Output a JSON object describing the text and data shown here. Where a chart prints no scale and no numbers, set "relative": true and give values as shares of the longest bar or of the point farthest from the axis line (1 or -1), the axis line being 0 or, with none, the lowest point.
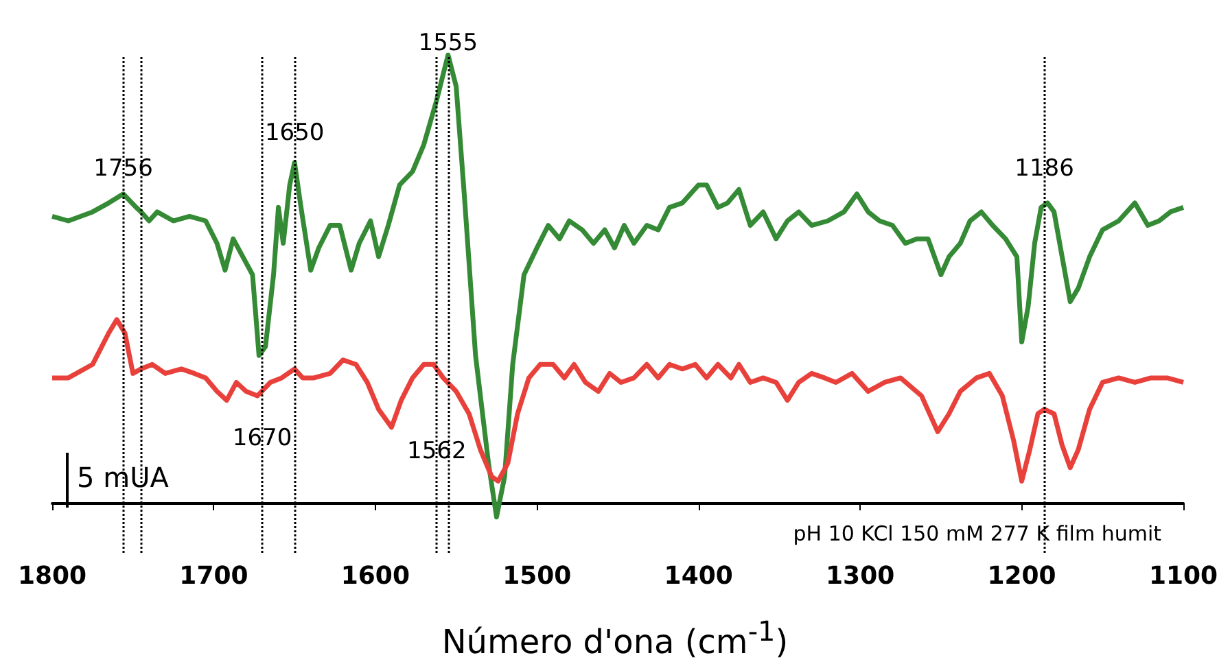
{
  "chart_data": {
    "type": "line",
    "relative": true,
    "xlabel": "Número d'ona (cm$^{-1}$)",
    "xlim": [
      1800,
      1100
    ],
    "xticks": [
      1800,
      1700,
      1600,
      1500,
      1400,
      1300,
      1200,
      1100
    ],
    "grid": false,
    "marker": "none",
    "line_style": "solid",
    "series": [
      {
        "color": "#358a35",
        "x": [
          1800,
          1790,
          1775,
          1765,
          1756,
          1748,
          1745,
          1740,
          1735,
          1725,
          1715,
          1705,
          1698,
          1693,
          1688,
          1682,
          1676,
          1672,
          1668,
          1663,
          1660,
          1657,
          1653,
          1650,
          1646,
          1640,
          1635,
          1628,
          1622,
          1615,
          1610,
          1603,
          1598,
          1592,
          1585,
          1577,
          1570,
          1562,
          1555,
          1550,
          1545,
          1538,
          1530,
          1525,
          1520,
          1515,
          1508,
          1500,
          1493,
          1486,
          1480,
          1472,
          1465,
          1458,
          1452,
          1446,
          1440,
          1432,
          1425,
          1418,
          1410,
          1400,
          1395,
          1388,
          1382,
          1375,
          1368,
          1360,
          1352,
          1345,
          1338,
          1330,
          1320,
          1310,
          1302,
          1295,
          1288,
          1280,
          1272,
          1265,
          1258,
          1250,
          1245,
          1238,
          1232,
          1225,
          1218,
          1210,
          1203,
          1200,
          1196,
          1192,
          1188,
          1184,
          1180,
          1175,
          1170,
          1165,
          1158,
          1150,
          1140,
          1130,
          1122,
          1115,
          1108,
          1100
        ],
        "values": [
          0.64,
          0.63,
          0.65,
          0.67,
          0.69,
          0.66,
          0.65,
          0.63,
          0.65,
          0.63,
          0.64,
          0.63,
          0.58,
          0.52,
          0.59,
          0.55,
          0.51,
          0.33,
          0.35,
          0.51,
          0.66,
          0.58,
          0.71,
          0.76,
          0.66,
          0.52,
          0.57,
          0.62,
          0.62,
          0.52,
          0.58,
          0.63,
          0.55,
          0.62,
          0.71,
          0.74,
          0.8,
          0.9,
          1,
          0.93,
          0.69,
          0.33,
          0.09,
          -0.03,
          0.06,
          0.31,
          0.51,
          0.57,
          0.62,
          0.59,
          0.63,
          0.61,
          0.58,
          0.61,
          0.57,
          0.62,
          0.58,
          0.62,
          0.61,
          0.66,
          0.67,
          0.71,
          0.71,
          0.66,
          0.67,
          0.7,
          0.62,
          0.65,
          0.59,
          0.63,
          0.65,
          0.62,
          0.63,
          0.65,
          0.69,
          0.65,
          0.63,
          0.62,
          0.58,
          0.59,
          0.59,
          0.51,
          0.55,
          0.58,
          0.63,
          0.65,
          0.62,
          0.59,
          0.55,
          0.36,
          0.44,
          0.58,
          0.66,
          0.67,
          0.65,
          0.55,
          0.45,
          0.48,
          0.55,
          0.61,
          0.63,
          0.67,
          0.62,
          0.63,
          0.65,
          0.66
        ]
      },
      {
        "color": "#e8413b",
        "x": [
          1800,
          1790,
          1775,
          1765,
          1760,
          1755,
          1750,
          1745,
          1738,
          1730,
          1720,
          1712,
          1705,
          1698,
          1692,
          1686,
          1680,
          1673,
          1665,
          1658,
          1650,
          1645,
          1638,
          1628,
          1620,
          1612,
          1605,
          1598,
          1590,
          1584,
          1577,
          1570,
          1564,
          1558,
          1550,
          1542,
          1535,
          1528,
          1524,
          1518,
          1512,
          1505,
          1498,
          1490,
          1483,
          1477,
          1470,
          1462,
          1455,
          1448,
          1440,
          1432,
          1425,
          1418,
          1410,
          1402,
          1395,
          1388,
          1380,
          1375,
          1368,
          1360,
          1352,
          1345,
          1338,
          1330,
          1322,
          1315,
          1305,
          1295,
          1285,
          1275,
          1262,
          1252,
          1245,
          1238,
          1228,
          1220,
          1212,
          1205,
          1200,
          1195,
          1190,
          1186,
          1180,
          1175,
          1170,
          1165,
          1158,
          1150,
          1140,
          1130,
          1120,
          1110,
          1100
        ],
        "values": [
          0.28,
          0.28,
          0.31,
          0.38,
          0.41,
          0.38,
          0.29,
          0.3,
          0.31,
          0.29,
          0.3,
          0.29,
          0.28,
          0.25,
          0.23,
          0.27,
          0.25,
          0.24,
          0.27,
          0.28,
          0.3,
          0.28,
          0.28,
          0.29,
          0.32,
          0.31,
          0.27,
          0.21,
          0.17,
          0.23,
          0.28,
          0.31,
          0.31,
          0.28,
          0.25,
          0.2,
          0.12,
          0.06,
          0.05,
          0.09,
          0.2,
          0.28,
          0.31,
          0.31,
          0.28,
          0.31,
          0.27,
          0.25,
          0.29,
          0.27,
          0.28,
          0.31,
          0.28,
          0.31,
          0.3,
          0.31,
          0.28,
          0.31,
          0.28,
          0.31,
          0.27,
          0.28,
          0.27,
          0.23,
          0.27,
          0.29,
          0.28,
          0.27,
          0.29,
          0.25,
          0.27,
          0.28,
          0.24,
          0.16,
          0.2,
          0.25,
          0.28,
          0.29,
          0.24,
          0.14,
          0.05,
          0.12,
          0.2,
          0.21,
          0.2,
          0.13,
          0.08,
          0.12,
          0.21,
          0.27,
          0.28,
          0.27,
          0.28,
          0.28,
          0.27
        ]
      }
    ],
    "ref_lines": [
      {
        "axis": "x",
        "value": 1756,
        "line_style": "dotted"
      },
      {
        "axis": "x",
        "value": 1745,
        "line_style": "dotted"
      },
      {
        "axis": "x",
        "value": 1670,
        "line_style": "dotted"
      },
      {
        "axis": "x",
        "value": 1650,
        "line_style": "dotted"
      },
      {
        "axis": "x",
        "value": 1562,
        "line_style": "dotted"
      },
      {
        "axis": "x",
        "value": 1555,
        "line_style": "dotted"
      },
      {
        "axis": "x",
        "value": 1186,
        "line_style": "dotted"
      }
    ],
    "annotations": [
      {
        "text": "1756",
        "x": 1756,
        "y": 0.72
      },
      {
        "text": "1650",
        "x": 1650,
        "y": 0.8
      },
      {
        "text": "1555",
        "x": 1555,
        "y": 1
      },
      {
        "text": "1186",
        "x": 1186,
        "y": 0.72
      },
      {
        "text": "1670",
        "x": 1670,
        "y": 0.12
      },
      {
        "text": "1562",
        "x": 1562,
        "y": 0.09
      },
      "5 mUA",
      "pH 10 KCl 150 mM 277 K film humit"
    ]
  }
}
